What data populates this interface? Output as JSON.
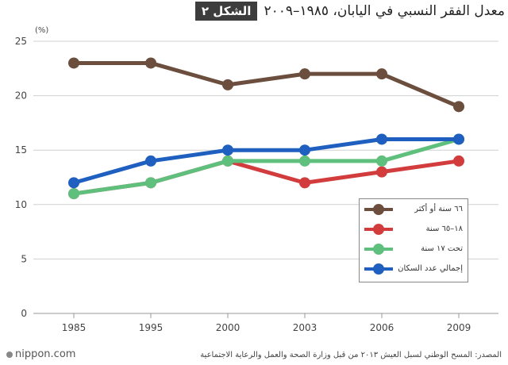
{
  "header": {
    "badge": "الشكل ٢",
    "title": "معدل الفقر النسبي في اليابان، ١٩٨٥–٢٠٠٩"
  },
  "footer": {
    "logo": "nippon.com",
    "source": "المصدر: المسح الوطني لسبل العيش ٢٠١٣ من قبل وزارة الصحة والعمل والرعاية الاجتماعية"
  },
  "chart_data": {
    "type": "line",
    "unit_label": "(%)",
    "categories": [
      "1985",
      "1995",
      "2000",
      "2003",
      "2006",
      "2009"
    ],
    "ylim": [
      0,
      25
    ],
    "yticks": [
      "0",
      "5",
      "10",
      "15",
      "20",
      "25"
    ],
    "grid": true,
    "legend_position": "bottom-right",
    "series": [
      {
        "name": "٦٦ سنة أو أكثر",
        "color": "#6b4e3d",
        "values": [
          23,
          23,
          21,
          22,
          22,
          19
        ]
      },
      {
        "name": "١٨–٦٥ سنة",
        "color": "#d23c3c",
        "values": [
          11,
          12,
          14,
          12,
          13,
          14
        ]
      },
      {
        "name": "تحت ١٧ سنة",
        "color": "#5fbf7c",
        "values": [
          11,
          12,
          14,
          14,
          14,
          16
        ]
      },
      {
        "name": "إجمالي عدد السكان",
        "color": "#1e5fbf",
        "values": [
          12,
          14,
          15,
          15,
          16,
          16
        ]
      }
    ]
  }
}
